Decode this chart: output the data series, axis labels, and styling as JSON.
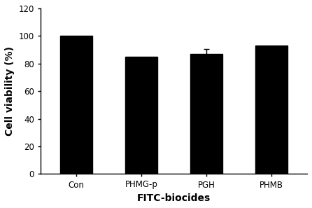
{
  "categories": [
    "Con",
    "PHMG-p",
    "PGH",
    "PHMB"
  ],
  "values": [
    100.0,
    85.0,
    87.0,
    93.0
  ],
  "errors": [
    0.0,
    0.0,
    3.5,
    0.0
  ],
  "bar_color": "#000000",
  "xlabel": "FITC-biocides",
  "ylabel": "Cell viability (%)",
  "label_color": "#000000",
  "ylim": [
    0,
    120
  ],
  "yticks": [
    0,
    20,
    40,
    60,
    80,
    100,
    120
  ],
  "bar_width": 0.5,
  "background_color": "#ffffff",
  "xlabel_fontsize": 10,
  "ylabel_fontsize": 10,
  "tick_fontsize": 8.5
}
